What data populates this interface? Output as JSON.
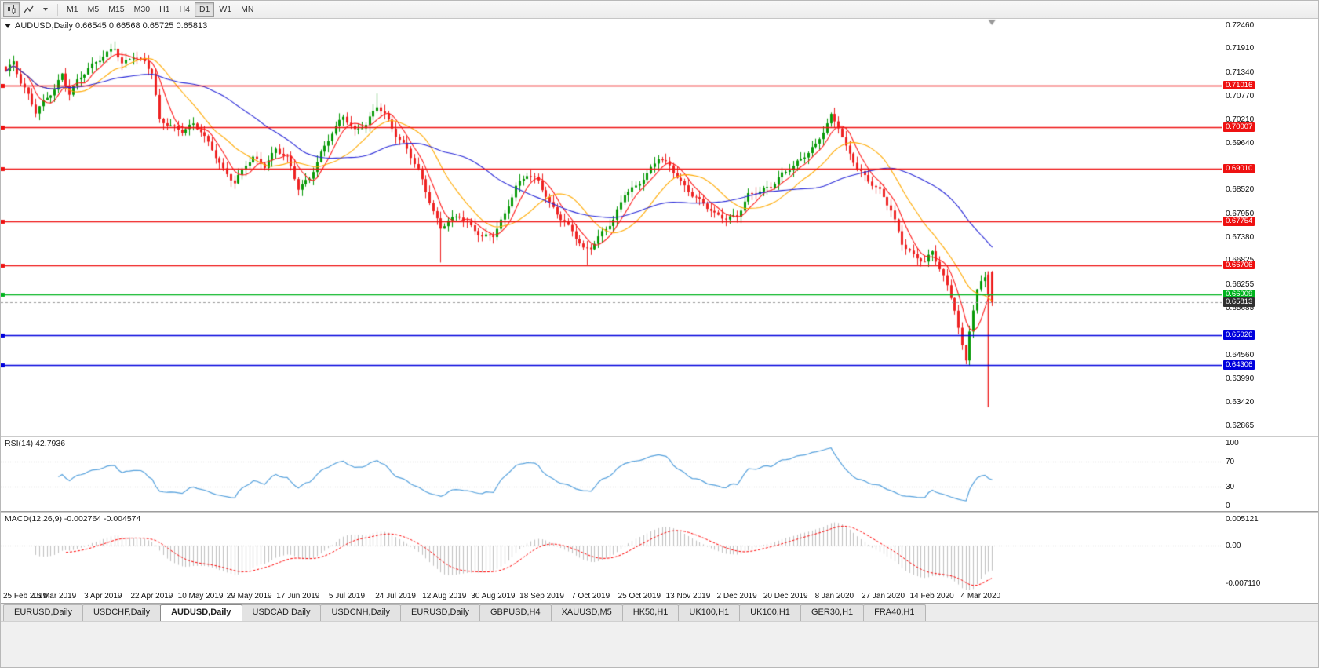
{
  "toolbar": {
    "timeframes": [
      "M1",
      "M5",
      "M15",
      "M30",
      "H1",
      "H4",
      "D1",
      "W1",
      "MN"
    ],
    "active_timeframe": "D1",
    "left_icons": [
      "candlestick-chart",
      "trendline",
      "chevron-down"
    ]
  },
  "chart": {
    "title": "AUDUSD,Daily 0.66545 0.66568 0.65725 0.65813",
    "symbol": "AUDUSD",
    "period": "Daily",
    "open": "0.66545",
    "high": "0.66568",
    "low": "0.65725",
    "close": "0.65813"
  },
  "chart_data": {
    "type": "candlestick",
    "title": "AUDUSD,Daily",
    "ylim": [
      0.6262,
      0.7261
    ],
    "bar_spacing": 4.78,
    "x_start": 6,
    "label_step": 13,
    "candle_count": 264,
    "y_ticks": [
      "0.72460",
      "0.71910",
      "0.71340",
      "0.70770",
      "0.70210",
      "0.69640",
      "0.68520",
      "0.67950",
      "0.67380",
      "0.66825",
      "0.66255",
      "0.65685",
      "0.64560",
      "0.63990",
      "0.63420",
      "0.62865"
    ],
    "x_labels": [
      "25 Feb 2019",
      "15 Mar 2019",
      "3 Apr 2019",
      "22 Apr 2019",
      "10 May 2019",
      "29 May 2019",
      "17 Jun 2019",
      "5 Jul 2019",
      "24 Jul 2019",
      "12 Aug 2019",
      "30 Aug 2019",
      "18 Sep 2019",
      "7 Oct 2019",
      "25 Oct 2019",
      "13 Nov 2019",
      "2 Dec 2019",
      "20 Dec 2019",
      "8 Jan 2020",
      "27 Jan 2020",
      "14 Feb 2020",
      "4 Mar 2020"
    ],
    "close_anchors": [
      [
        0,
        0.7135
      ],
      [
        2,
        0.7158
      ],
      [
        4,
        0.7108
      ],
      [
        6,
        0.7078
      ],
      [
        8,
        0.7038
      ],
      [
        10,
        0.7062
      ],
      [
        13,
        0.7092
      ],
      [
        15,
        0.7128
      ],
      [
        17,
        0.7082
      ],
      [
        19,
        0.7112
      ],
      [
        22,
        0.7142
      ],
      [
        26,
        0.7172
      ],
      [
        29,
        0.7192
      ],
      [
        31,
        0.7152
      ],
      [
        34,
        0.7172
      ],
      [
        37,
        0.7158
      ],
      [
        39,
        0.7132
      ],
      [
        41,
        0.7018
      ],
      [
        44,
        0.7004
      ],
      [
        47,
        0.6992
      ],
      [
        50,
        0.7008
      ],
      [
        52,
        0.6992
      ],
      [
        55,
        0.6948
      ],
      [
        58,
        0.6898
      ],
      [
        61,
        0.6868
      ],
      [
        64,
        0.6912
      ],
      [
        66,
        0.6928
      ],
      [
        69,
        0.6908
      ],
      [
        72,
        0.6948
      ],
      [
        75,
        0.6928
      ],
      [
        78,
        0.6855
      ],
      [
        81,
        0.6878
      ],
      [
        84,
        0.6938
      ],
      [
        87,
        0.6988
      ],
      [
        90,
        0.7028
      ],
      [
        93,
        0.6992
      ],
      [
        96,
        0.7008
      ],
      [
        99,
        0.7052
      ],
      [
        101,
        0.7032
      ],
      [
        104,
        0.6982
      ],
      [
        107,
        0.6948
      ],
      [
        110,
        0.6898
      ],
      [
        112,
        0.6848
      ],
      [
        114,
        0.6798
      ],
      [
        116,
        0.6758
      ],
      [
        118,
        0.6778
      ],
      [
        121,
        0.6788
      ],
      [
        124,
        0.6762
      ],
      [
        127,
        0.6738
      ],
      [
        130,
        0.6742
      ],
      [
        133,
        0.6792
      ],
      [
        136,
        0.6858
      ],
      [
        139,
        0.6888
      ],
      [
        142,
        0.6872
      ],
      [
        145,
        0.6818
      ],
      [
        148,
        0.6782
      ],
      [
        151,
        0.6752
      ],
      [
        154,
        0.6708
      ],
      [
        156,
        0.6712
      ],
      [
        159,
        0.6748
      ],
      [
        162,
        0.6778
      ],
      [
        165,
        0.6842
      ],
      [
        168,
        0.6858
      ],
      [
        171,
        0.6888
      ],
      [
        174,
        0.6928
      ],
      [
        177,
        0.6908
      ],
      [
        180,
        0.6868
      ],
      [
        183,
        0.6838
      ],
      [
        186,
        0.6818
      ],
      [
        189,
        0.6792
      ],
      [
        192,
        0.6782
      ],
      [
        195,
        0.6788
      ],
      [
        198,
        0.6838
      ],
      [
        201,
        0.6848
      ],
      [
        204,
        0.6858
      ],
      [
        207,
        0.6888
      ],
      [
        210,
        0.6908
      ],
      [
        213,
        0.6932
      ],
      [
        216,
        0.6958
      ],
      [
        219,
        0.7008
      ],
      [
        220,
        0.7028
      ],
      [
        222,
        0.7002
      ],
      [
        224,
        0.6952
      ],
      [
        227,
        0.6902
      ],
      [
        230,
        0.6872
      ],
      [
        233,
        0.6848
      ],
      [
        236,
        0.6802
      ],
      [
        239,
        0.6722
      ],
      [
        242,
        0.6692
      ],
      [
        245,
        0.6678
      ],
      [
        247,
        0.6702
      ],
      [
        249,
        0.6662
      ],
      [
        251,
        0.6622
      ],
      [
        253,
        0.6562
      ],
      [
        255,
        0.6478
      ],
      [
        256,
        0.6442
      ],
      [
        257,
        0.6512
      ],
      [
        258,
        0.6562
      ],
      [
        259,
        0.6612
      ],
      [
        260,
        0.6632
      ],
      [
        261,
        0.6642
      ],
      [
        262,
        0.66
      ],
      [
        263,
        0.65813
      ]
    ],
    "candle_overrides": {
      "29": {
        "high": 0.7207
      },
      "99": {
        "high": 0.7082
      },
      "116": {
        "low": 0.6677
      },
      "155": {
        "low": 0.6671
      },
      "256": {
        "low": 0.6433
      },
      "262": {
        "open": 0.6648,
        "high": 0.6656,
        "low": 0.633,
        "close": 0.66
      },
      "263": {
        "open": 0.66545,
        "high": 0.66568,
        "low": 0.65725,
        "close": 0.65813
      }
    },
    "colors": {
      "up": "#089a08",
      "down": "#ee2222",
      "ma_fast": "#ff1a1a",
      "ma_mid": "#ffaa00",
      "ma_slow": "#2727d8",
      "rsi": "#55a1dd",
      "macd_hist": "#c0c0c0",
      "macd_signal": "#ff0000",
      "current_price_line": "#999999"
    },
    "moving_averages": [
      {
        "period": 6,
        "color_key": "ma_fast"
      },
      {
        "period": 16,
        "color_key": "ma_mid"
      },
      {
        "period": 40,
        "color_key": "ma_slow"
      }
    ],
    "horizontal_lines": [
      {
        "label": "0.71016",
        "value": 0.71016,
        "color": "#ee1111"
      },
      {
        "label": "0.70007",
        "value": 0.70007,
        "color": "#ee1111"
      },
      {
        "label": "0.69010",
        "value": 0.6901,
        "color": "#ee1111"
      },
      {
        "label": "0.67754",
        "value": 0.67754,
        "color": "#ee1111"
      },
      {
        "label": "0.66706",
        "value": 0.66706,
        "color": "#ee1111"
      },
      {
        "label": "0.66009",
        "value": 0.66009,
        "color": "#00b41e"
      },
      {
        "label": "0.65026",
        "value": 0.65026,
        "color": "#0000dd"
      },
      {
        "label": "0.64306",
        "value": 0.64306,
        "color": "#0000dd"
      }
    ],
    "current_price": {
      "label": "0.65813",
      "value": 0.65813,
      "badge_color": "#303030"
    },
    "indicators": {
      "rsi": {
        "label": "RSI(14) 42.7936",
        "period": 14,
        "value": 42.7936,
        "y_ticks": [
          "100",
          "70",
          "30",
          "0"
        ],
        "levels": [
          70,
          30
        ]
      },
      "macd": {
        "label": "MACD(12,26,9) -0.002764 -0.004574",
        "fast": 12,
        "slow": 26,
        "signal": 9,
        "macd_value": -0.002764,
        "signal_value": -0.004574,
        "y_ticks": [
          "0.005121",
          "0.00",
          "-0.007110"
        ],
        "scale_max": 0.005121,
        "scale_min": -0.00711
      }
    }
  },
  "tabs": {
    "items": [
      "EURUSD,Daily",
      "USDCHF,Daily",
      "AUDUSD,Daily",
      "USDCAD,Daily",
      "USDCNH,Daily",
      "EURUSD,Daily",
      "GBPUSD,H4",
      "XAUUSD,M5",
      "HK50,H1",
      "UK100,H1",
      "UK100,H1",
      "GER30,H1",
      "FRA40,H1"
    ],
    "active_index": 2
  }
}
